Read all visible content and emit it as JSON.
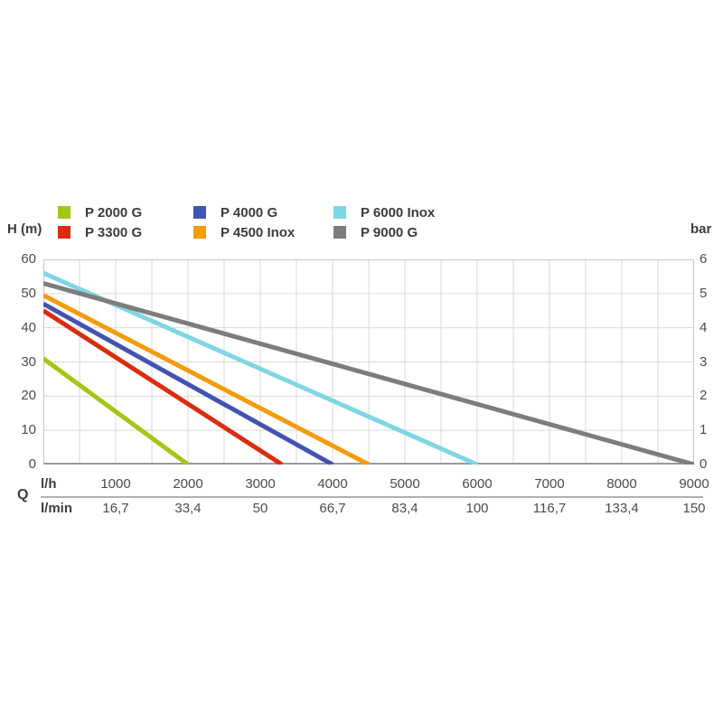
{
  "style": {
    "background": "#ffffff",
    "grid": "#dadada",
    "border": "#c6c6c6",
    "axis_line": "#9b9b9b",
    "divider": "#b0b0b0",
    "tick_text": "#4c4c4c",
    "legend_text": "#3c3c3c"
  },
  "chart_data": {
    "type": "line",
    "title": "",
    "grid": true,
    "legend_position": "top",
    "series": [
      {
        "name": "P 2000 G",
        "color": "#a3c714",
        "points": [
          [
            0,
            31
          ],
          [
            2000,
            0
          ]
        ]
      },
      {
        "name": "P 3300 G",
        "color": "#dc2c0e",
        "points": [
          [
            0,
            45
          ],
          [
            3300,
            0
          ]
        ]
      },
      {
        "name": "P 4000 G",
        "color": "#4353b3",
        "points": [
          [
            0,
            47
          ],
          [
            4000,
            0
          ]
        ]
      },
      {
        "name": "P 4500 Inox",
        "color": "#f59b05",
        "points": [
          [
            0,
            49.5
          ],
          [
            4500,
            0
          ]
        ]
      },
      {
        "name": "P 6000 Inox",
        "color": "#7fd6e4",
        "points": [
          [
            0,
            56
          ],
          [
            6000,
            0
          ]
        ]
      },
      {
        "name": "P 9000 G",
        "color": "#7d7d7d",
        "points": [
          [
            0,
            53
          ],
          [
            9000,
            0
          ]
        ]
      }
    ],
    "left_axis": {
      "label": "H (m)",
      "range": [
        0,
        60
      ],
      "ticks": [
        "60",
        "50",
        "40",
        "30",
        "20",
        "10",
        "0"
      ]
    },
    "right_axis": {
      "label": "bar",
      "range": [
        0,
        6
      ],
      "ticks": [
        "6",
        "5",
        "4",
        "3",
        "2",
        "1",
        "0"
      ]
    },
    "x_axis": {
      "label": "Q",
      "range": [
        0,
        9000
      ],
      "grid_step": 500,
      "rows": [
        {
          "label": "l/h",
          "values": [
            1000,
            2000,
            3000,
            4000,
            5000,
            6000,
            7000,
            8000,
            9000
          ],
          "ticks": [
            "1000",
            "2000",
            "3000",
            "4000",
            "5000",
            "6000",
            "7000",
            "8000",
            "9000"
          ]
        },
        {
          "label": "l/min",
          "values": [
            1000,
            2000,
            3000,
            4000,
            5000,
            6000,
            7000,
            8000,
            9000
          ],
          "ticks": [
            "16,7",
            "33,4",
            "50",
            "66,7",
            "83,4",
            "100",
            "116,7",
            "133,4",
            "150"
          ]
        }
      ]
    }
  }
}
